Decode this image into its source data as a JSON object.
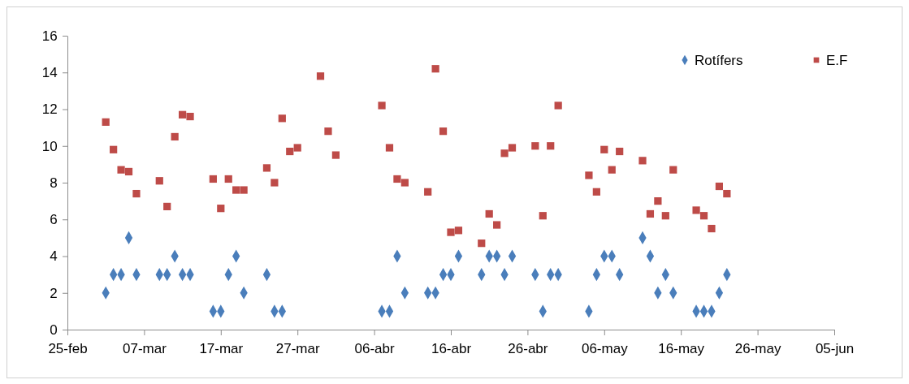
{
  "chart_data": {
    "type": "scatter",
    "legend": "top right",
    "grid": false,
    "xlim": [
      "--02-25",
      "--06-05"
    ],
    "xticks": [
      {
        "value": "--02-25",
        "label": "25-feb"
      },
      {
        "value": "--03-07",
        "label": "07-mar"
      },
      {
        "value": "--03-17",
        "label": "17-mar"
      },
      {
        "value": "--03-27",
        "label": "27-mar"
      },
      {
        "value": "--04-06",
        "label": "06-abr"
      },
      {
        "value": "--04-16",
        "label": "16-abr"
      },
      {
        "value": "--04-26",
        "label": "26-abr"
      },
      {
        "value": "--05-06",
        "label": "06-may"
      },
      {
        "value": "--05-16",
        "label": "16-may"
      },
      {
        "value": "--05-26",
        "label": "26-may"
      },
      {
        "value": "--06-05",
        "label": "05-jun"
      }
    ],
    "ylim": [
      0,
      16
    ],
    "yticks": [
      0,
      2,
      4,
      6,
      8,
      10,
      12,
      14,
      16
    ],
    "series": [
      {
        "name": "Rotífers",
        "color": "#4a7ebb",
        "marker": "diamond",
        "x": [
          "--03-02",
          "--03-03",
          "--03-04",
          "--03-05",
          "--03-06",
          "--03-09",
          "--03-10",
          "--03-11",
          "--03-12",
          "--03-13",
          "--03-16",
          "--03-17",
          "--03-18",
          "--03-19",
          "--03-20",
          "--03-23",
          "--03-24",
          "--03-25",
          "--04-07",
          "--04-08",
          "--04-09",
          "--04-10",
          "--04-13",
          "--04-14",
          "--04-15",
          "--04-16",
          "--04-17",
          "--04-20",
          "--04-21",
          "--04-22",
          "--04-23",
          "--04-24",
          "--04-27",
          "--04-28",
          "--04-29",
          "--04-30",
          "--05-04",
          "--05-05",
          "--05-06",
          "--05-07",
          "--05-08",
          "--05-11",
          "--05-12",
          "--05-13",
          "--05-14",
          "--05-15",
          "--05-18",
          "--05-19",
          "--05-20",
          "--05-21",
          "--05-22"
        ],
        "values": [
          2,
          3,
          3,
          5,
          3,
          3,
          3,
          4,
          3,
          3,
          1,
          1,
          3,
          4,
          2,
          3,
          1,
          1,
          1,
          1,
          4,
          2,
          2,
          2,
          3,
          3,
          4,
          3,
          4,
          4,
          3,
          4,
          3,
          1,
          3,
          3,
          1,
          3,
          4,
          4,
          3,
          5,
          4,
          2,
          3,
          2,
          1,
          1,
          1,
          2,
          3
        ]
      },
      {
        "name": "E.F",
        "color": "#be4b48",
        "marker": "square",
        "x": [
          "--03-02",
          "--03-03",
          "--03-04",
          "--03-05",
          "--03-06",
          "--03-09",
          "--03-10",
          "--03-11",
          "--03-12",
          "--03-13",
          "--03-16",
          "--03-17",
          "--03-18",
          "--03-19",
          "--03-20",
          "--03-23",
          "--03-24",
          "--03-25",
          "--03-26",
          "--03-27",
          "--03-30",
          "--03-31",
          "--04-01",
          "--04-07",
          "--04-08",
          "--04-09",
          "--04-10",
          "--04-13",
          "--04-14",
          "--04-15",
          "--04-16",
          "--04-17",
          "--04-20",
          "--04-21",
          "--04-22",
          "--04-23",
          "--04-24",
          "--04-27",
          "--04-28",
          "--04-29",
          "--04-30",
          "--05-04",
          "--05-05",
          "--05-06",
          "--05-07",
          "--05-08",
          "--05-11",
          "--05-12",
          "--05-13",
          "--05-14",
          "--05-15",
          "--05-18",
          "--05-19",
          "--05-20",
          "--05-21",
          "--05-22"
        ],
        "values": [
          11.3,
          9.8,
          8.7,
          8.6,
          7.4,
          8.1,
          6.7,
          10.5,
          11.7,
          11.6,
          8.2,
          6.6,
          8.2,
          7.6,
          7.6,
          8.8,
          8.0,
          11.5,
          9.7,
          9.9,
          13.8,
          10.8,
          9.5,
          12.2,
          9.9,
          8.2,
          8.0,
          7.5,
          14.2,
          10.8,
          5.3,
          5.4,
          4.7,
          6.3,
          5.7,
          9.6,
          9.9,
          10.0,
          6.2,
          10.0,
          12.2,
          8.4,
          7.5,
          9.8,
          8.7,
          9.7,
          9.2,
          6.3,
          7.0,
          6.2,
          8.7,
          6.5,
          6.2,
          5.5,
          7.8,
          7.4
        ]
      }
    ]
  }
}
